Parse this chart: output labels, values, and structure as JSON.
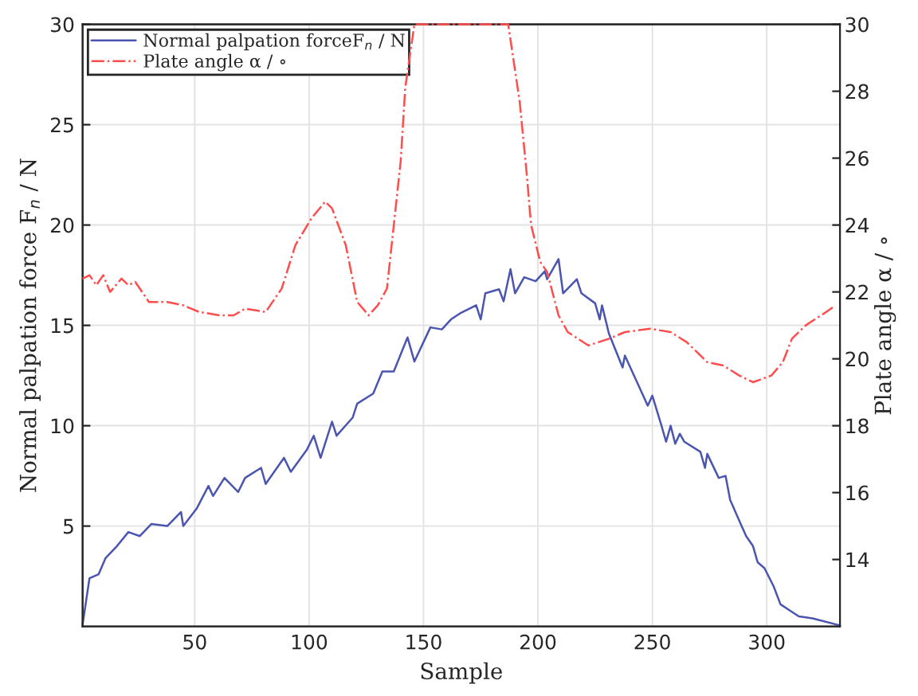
{
  "chart_data": {
    "type": "line",
    "xlabel": "Sample",
    "ylabel": "Normal palpation force F$_{n}$ / N",
    "y2label": "Plate angle α / ∘",
    "xlim": [
      1,
      332
    ],
    "xticks": [
      50,
      100,
      150,
      200,
      250,
      300
    ],
    "ylim": [
      0,
      30
    ],
    "yticks": [
      5,
      10,
      15,
      20,
      25,
      30
    ],
    "y2lim": [
      12,
      30
    ],
    "y2ticks": [
      14,
      16,
      18,
      20,
      22,
      24,
      26,
      28,
      30
    ],
    "grid": true,
    "legend": "top left",
    "series": [
      {
        "name": "Normal palpation forceF$_{n}$ / N",
        "color": "#4a55b0",
        "line_style": "solid",
        "x": [
          1,
          4,
          8,
          11,
          16,
          21,
          26,
          31,
          38,
          44,
          45,
          51,
          56,
          58,
          63,
          69,
          72,
          79,
          81,
          89,
          92,
          99,
          102,
          105,
          110,
          112,
          119,
          121,
          128,
          132,
          137,
          143,
          146,
          153,
          158,
          162,
          166,
          173,
          175,
          177,
          183,
          185,
          188,
          190,
          194,
          199,
          203,
          204,
          209,
          211,
          217,
          219,
          225,
          227,
          228,
          231,
          237,
          238,
          244,
          248,
          250,
          254,
          256,
          258,
          260,
          262,
          264,
          271,
          273,
          274,
          279,
          282,
          284,
          289,
          291,
          294,
          296,
          299,
          303,
          306,
          310,
          314,
          320,
          332
        ],
        "values": [
          0.1,
          2.4,
          2.6,
          3.4,
          4.0,
          4.7,
          4.5,
          5.1,
          5.0,
          5.7,
          5.0,
          5.9,
          7.0,
          6.5,
          7.4,
          6.7,
          7.4,
          7.9,
          7.1,
          8.4,
          7.7,
          8.8,
          9.5,
          8.4,
          10.2,
          9.5,
          10.4,
          11.1,
          11.6,
          12.7,
          12.7,
          14.4,
          13.2,
          14.9,
          14.8,
          15.3,
          15.6,
          16.0,
          15.3,
          16.6,
          16.8,
          16.2,
          17.8,
          16.6,
          17.4,
          17.2,
          17.7,
          17.3,
          18.3,
          16.6,
          17.3,
          16.6,
          16.1,
          15.3,
          16.0,
          14.6,
          12.9,
          13.5,
          12.0,
          11.0,
          11.5,
          10.0,
          9.2,
          10.0,
          9.1,
          9.6,
          9.2,
          8.7,
          7.9,
          8.6,
          7.4,
          7.5,
          6.3,
          5.0,
          4.5,
          4.0,
          3.2,
          2.9,
          2.0,
          1.1,
          0.8,
          0.5,
          0.4,
          0.05
        ]
      },
      {
        "name": "Plate angle α / ∘",
        "color": "#ff4d4d",
        "line_style": "dashdot",
        "axis": "y2",
        "x": [
          1,
          4,
          7,
          10,
          13,
          18,
          21,
          24,
          30,
          38,
          45,
          52,
          61,
          67,
          72,
          81,
          88,
          94,
          101,
          107,
          110,
          116,
          121,
          126,
          130,
          134,
          140,
          142,
          146,
          160,
          175,
          187,
          192,
          195,
          197,
          201,
          204,
          209,
          213,
          222,
          231,
          238,
          249,
          258,
          265,
          274,
          281,
          288,
          294,
          298,
          302,
          307,
          311,
          317,
          326,
          330
        ],
        "values": [
          22.4,
          22.5,
          22.2,
          22.5,
          22.0,
          22.4,
          22.2,
          22.3,
          21.7,
          21.7,
          21.6,
          21.4,
          21.3,
          21.3,
          21.5,
          21.4,
          22.1,
          23.4,
          24.2,
          24.7,
          24.5,
          23.4,
          21.7,
          21.3,
          21.6,
          22.1,
          25.9,
          28.1,
          30,
          30,
          30,
          30,
          27.7,
          25.6,
          24.0,
          22.9,
          22.6,
          21.3,
          20.8,
          20.4,
          20.6,
          20.8,
          20.9,
          20.8,
          20.5,
          19.9,
          19.8,
          19.5,
          19.3,
          19.4,
          19.5,
          19.9,
          20.6,
          21.0,
          21.4,
          21.6
        ]
      }
    ]
  }
}
